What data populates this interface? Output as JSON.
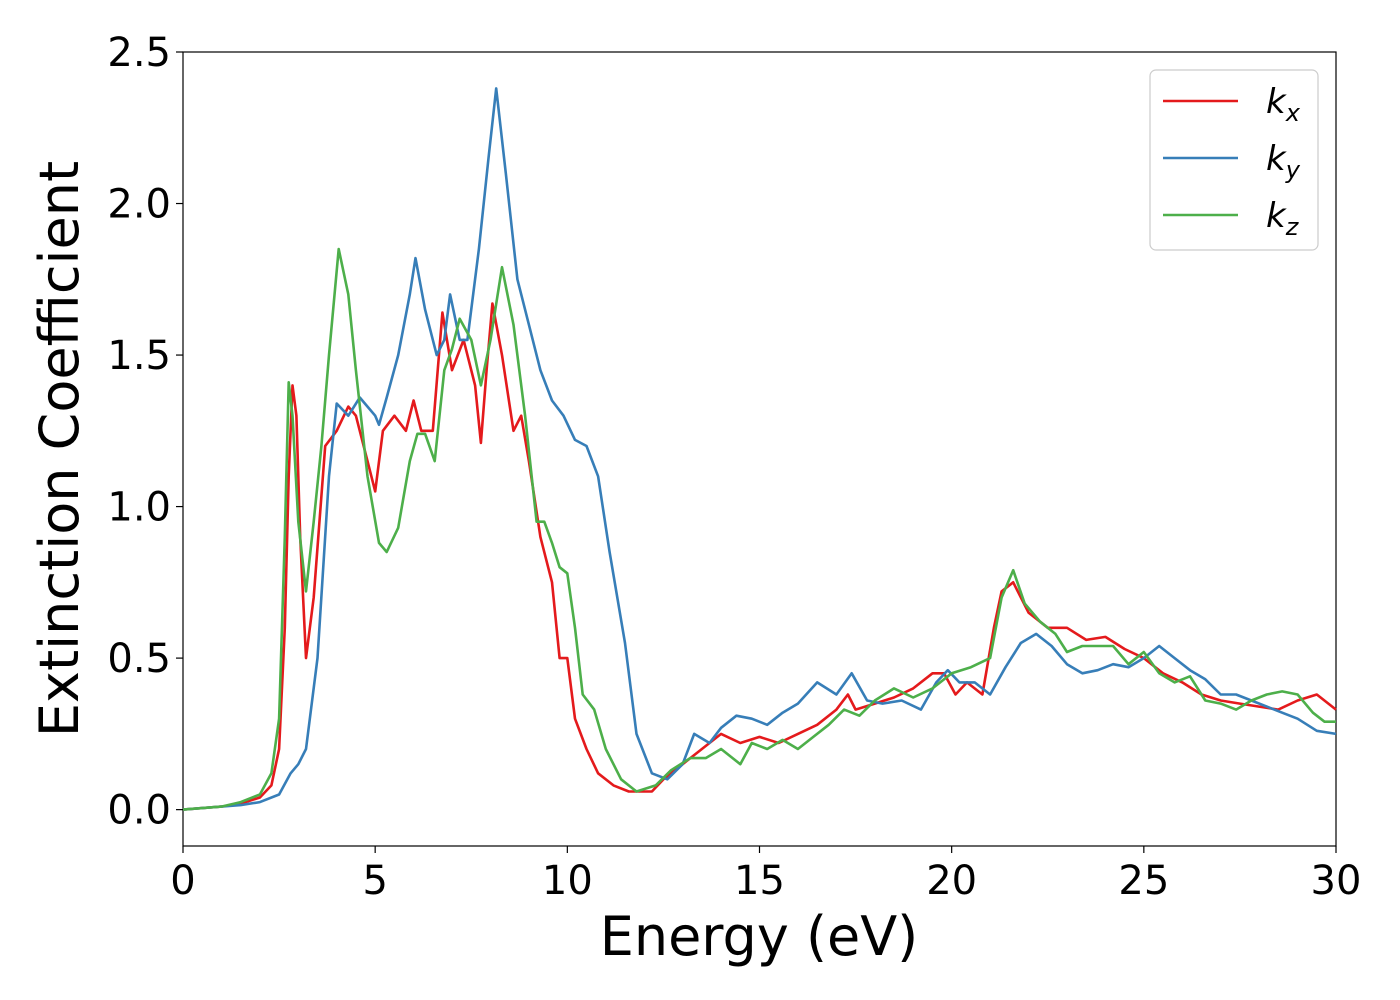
{
  "chart_data": {
    "type": "line",
    "xlabel": "Energy (eV)",
    "ylabel": "Extinction Coefficient",
    "xlim": [
      0,
      30
    ],
    "ylim": [
      -0.12,
      2.5
    ],
    "xticks": [
      "0",
      "5",
      "10",
      "15",
      "20",
      "25",
      "30"
    ],
    "yticks": [
      "0.0",
      "0.5",
      "1.0",
      "1.5",
      "2.0",
      "2.5"
    ],
    "grid": false,
    "legend_position": "top-right",
    "series": [
      {
        "name": "k_x",
        "label_main": "k",
        "label_sub": "x",
        "color": "#e41a1c",
        "points": [
          [
            0,
            0
          ],
          [
            1,
            0.01
          ],
          [
            1.5,
            0.02
          ],
          [
            2,
            0.04
          ],
          [
            2.3,
            0.08
          ],
          [
            2.5,
            0.2
          ],
          [
            2.65,
            0.6
          ],
          [
            2.75,
            1.1
          ],
          [
            2.85,
            1.4
          ],
          [
            2.95,
            1.3
          ],
          [
            3.05,
            0.9
          ],
          [
            3.2,
            0.5
          ],
          [
            3.4,
            0.7
          ],
          [
            3.7,
            1.2
          ],
          [
            4.0,
            1.25
          ],
          [
            4.3,
            1.33
          ],
          [
            4.5,
            1.3
          ],
          [
            4.8,
            1.15
          ],
          [
            5.0,
            1.05
          ],
          [
            5.2,
            1.25
          ],
          [
            5.5,
            1.3
          ],
          [
            5.8,
            1.25
          ],
          [
            6.0,
            1.35
          ],
          [
            6.2,
            1.25
          ],
          [
            6.5,
            1.25
          ],
          [
            6.75,
            1.64
          ],
          [
            7.0,
            1.45
          ],
          [
            7.3,
            1.55
          ],
          [
            7.6,
            1.4
          ],
          [
            7.75,
            1.21
          ],
          [
            7.9,
            1.45
          ],
          [
            8.05,
            1.67
          ],
          [
            8.3,
            1.5
          ],
          [
            8.6,
            1.25
          ],
          [
            8.8,
            1.3
          ],
          [
            9.0,
            1.15
          ],
          [
            9.3,
            0.9
          ],
          [
            9.6,
            0.75
          ],
          [
            9.8,
            0.5
          ],
          [
            10.0,
            0.5
          ],
          [
            10.2,
            0.3
          ],
          [
            10.5,
            0.2
          ],
          [
            10.8,
            0.12
          ],
          [
            11.2,
            0.08
          ],
          [
            11.6,
            0.06
          ],
          [
            12.2,
            0.06
          ],
          [
            12.5,
            0.1
          ],
          [
            13.0,
            0.15
          ],
          [
            13.5,
            0.2
          ],
          [
            14.0,
            0.25
          ],
          [
            14.5,
            0.22
          ],
          [
            15.0,
            0.24
          ],
          [
            15.5,
            0.22
          ],
          [
            16.0,
            0.25
          ],
          [
            16.5,
            0.28
          ],
          [
            17.0,
            0.33
          ],
          [
            17.3,
            0.38
          ],
          [
            17.5,
            0.33
          ],
          [
            18.0,
            0.35
          ],
          [
            18.5,
            0.37
          ],
          [
            19.0,
            0.4
          ],
          [
            19.5,
            0.45
          ],
          [
            19.8,
            0.45
          ],
          [
            20.1,
            0.38
          ],
          [
            20.4,
            0.42
          ],
          [
            20.8,
            0.38
          ],
          [
            21.1,
            0.6
          ],
          [
            21.3,
            0.72
          ],
          [
            21.6,
            0.75
          ],
          [
            22.0,
            0.65
          ],
          [
            22.5,
            0.6
          ],
          [
            23.0,
            0.6
          ],
          [
            23.5,
            0.56
          ],
          [
            24.0,
            0.57
          ],
          [
            24.5,
            0.53
          ],
          [
            25.0,
            0.5
          ],
          [
            25.5,
            0.45
          ],
          [
            26.0,
            0.42
          ],
          [
            26.5,
            0.38
          ],
          [
            27.0,
            0.36
          ],
          [
            27.5,
            0.35
          ],
          [
            28.0,
            0.34
          ],
          [
            28.5,
            0.33
          ],
          [
            29.0,
            0.36
          ],
          [
            29.5,
            0.38
          ],
          [
            30.0,
            0.33
          ]
        ]
      },
      {
        "name": "k_y",
        "label_main": "k",
        "label_sub": "y",
        "color": "#377eb8",
        "points": [
          [
            0,
            0
          ],
          [
            1,
            0.01
          ],
          [
            1.5,
            0.015
          ],
          [
            2,
            0.025
          ],
          [
            2.5,
            0.05
          ],
          [
            2.8,
            0.12
          ],
          [
            3.0,
            0.15
          ],
          [
            3.2,
            0.2
          ],
          [
            3.5,
            0.5
          ],
          [
            3.8,
            1.1
          ],
          [
            4.0,
            1.34
          ],
          [
            4.3,
            1.3
          ],
          [
            4.6,
            1.36
          ],
          [
            4.8,
            1.33
          ],
          [
            5.0,
            1.3
          ],
          [
            5.1,
            1.27
          ],
          [
            5.3,
            1.36
          ],
          [
            5.6,
            1.5
          ],
          [
            5.9,
            1.7
          ],
          [
            6.05,
            1.82
          ],
          [
            6.3,
            1.65
          ],
          [
            6.6,
            1.5
          ],
          [
            6.8,
            1.55
          ],
          [
            6.95,
            1.7
          ],
          [
            7.2,
            1.55
          ],
          [
            7.4,
            1.55
          ],
          [
            7.7,
            1.85
          ],
          [
            7.95,
            2.15
          ],
          [
            8.15,
            2.38
          ],
          [
            8.4,
            2.1
          ],
          [
            8.7,
            1.75
          ],
          [
            9.0,
            1.6
          ],
          [
            9.3,
            1.45
          ],
          [
            9.6,
            1.35
          ],
          [
            9.9,
            1.3
          ],
          [
            10.2,
            1.22
          ],
          [
            10.5,
            1.2
          ],
          [
            10.8,
            1.1
          ],
          [
            11.1,
            0.85
          ],
          [
            11.5,
            0.55
          ],
          [
            11.8,
            0.25
          ],
          [
            12.2,
            0.12
          ],
          [
            12.6,
            0.1
          ],
          [
            13.0,
            0.15
          ],
          [
            13.3,
            0.25
          ],
          [
            13.7,
            0.22
          ],
          [
            14.0,
            0.27
          ],
          [
            14.4,
            0.31
          ],
          [
            14.8,
            0.3
          ],
          [
            15.2,
            0.28
          ],
          [
            15.6,
            0.32
          ],
          [
            16.0,
            0.35
          ],
          [
            16.5,
            0.42
          ],
          [
            17.0,
            0.38
          ],
          [
            17.4,
            0.45
          ],
          [
            17.8,
            0.36
          ],
          [
            18.2,
            0.35
          ],
          [
            18.7,
            0.36
          ],
          [
            19.2,
            0.33
          ],
          [
            19.6,
            0.42
          ],
          [
            19.9,
            0.46
          ],
          [
            20.2,
            0.42
          ],
          [
            20.6,
            0.42
          ],
          [
            21.0,
            0.38
          ],
          [
            21.4,
            0.47
          ],
          [
            21.8,
            0.55
          ],
          [
            22.2,
            0.58
          ],
          [
            22.6,
            0.54
          ],
          [
            23.0,
            0.48
          ],
          [
            23.4,
            0.45
          ],
          [
            23.8,
            0.46
          ],
          [
            24.2,
            0.48
          ],
          [
            24.6,
            0.47
          ],
          [
            25.0,
            0.5
          ],
          [
            25.4,
            0.54
          ],
          [
            25.8,
            0.5
          ],
          [
            26.2,
            0.46
          ],
          [
            26.6,
            0.43
          ],
          [
            27.0,
            0.38
          ],
          [
            27.4,
            0.38
          ],
          [
            27.8,
            0.36
          ],
          [
            28.2,
            0.34
          ],
          [
            28.6,
            0.32
          ],
          [
            29.0,
            0.3
          ],
          [
            29.5,
            0.26
          ],
          [
            30.0,
            0.25
          ]
        ]
      },
      {
        "name": "k_z",
        "label_main": "k",
        "label_sub": "z",
        "color": "#4daf4a",
        "points": [
          [
            0,
            0
          ],
          [
            1,
            0.01
          ],
          [
            1.5,
            0.025
          ],
          [
            2,
            0.05
          ],
          [
            2.3,
            0.12
          ],
          [
            2.5,
            0.3
          ],
          [
            2.65,
            0.9
          ],
          [
            2.75,
            1.41
          ],
          [
            2.85,
            1.3
          ],
          [
            3.0,
            0.95
          ],
          [
            3.2,
            0.72
          ],
          [
            3.4,
            0.95
          ],
          [
            3.6,
            1.2
          ],
          [
            3.8,
            1.5
          ],
          [
            4.05,
            1.85
          ],
          [
            4.3,
            1.7
          ],
          [
            4.5,
            1.45
          ],
          [
            4.8,
            1.1
          ],
          [
            5.1,
            0.88
          ],
          [
            5.3,
            0.85
          ],
          [
            5.6,
            0.93
          ],
          [
            5.9,
            1.15
          ],
          [
            6.1,
            1.24
          ],
          [
            6.3,
            1.24
          ],
          [
            6.55,
            1.15
          ],
          [
            6.8,
            1.45
          ],
          [
            7.0,
            1.52
          ],
          [
            7.2,
            1.62
          ],
          [
            7.5,
            1.55
          ],
          [
            7.75,
            1.4
          ],
          [
            8.0,
            1.55
          ],
          [
            8.3,
            1.79
          ],
          [
            8.6,
            1.6
          ],
          [
            8.9,
            1.3
          ],
          [
            9.2,
            0.95
          ],
          [
            9.4,
            0.95
          ],
          [
            9.6,
            0.88
          ],
          [
            9.8,
            0.8
          ],
          [
            10.0,
            0.78
          ],
          [
            10.2,
            0.6
          ],
          [
            10.4,
            0.38
          ],
          [
            10.7,
            0.33
          ],
          [
            11.0,
            0.2
          ],
          [
            11.4,
            0.1
          ],
          [
            11.8,
            0.06
          ],
          [
            12.3,
            0.08
          ],
          [
            12.7,
            0.13
          ],
          [
            13.2,
            0.17
          ],
          [
            13.6,
            0.17
          ],
          [
            14.0,
            0.2
          ],
          [
            14.5,
            0.15
          ],
          [
            14.8,
            0.22
          ],
          [
            15.2,
            0.2
          ],
          [
            15.6,
            0.23
          ],
          [
            16.0,
            0.2
          ],
          [
            16.4,
            0.24
          ],
          [
            16.8,
            0.28
          ],
          [
            17.2,
            0.33
          ],
          [
            17.6,
            0.31
          ],
          [
            18.0,
            0.36
          ],
          [
            18.5,
            0.4
          ],
          [
            19.0,
            0.37
          ],
          [
            19.5,
            0.4
          ],
          [
            20.0,
            0.45
          ],
          [
            20.5,
            0.47
          ],
          [
            21.0,
            0.5
          ],
          [
            21.3,
            0.7
          ],
          [
            21.6,
            0.79
          ],
          [
            21.9,
            0.68
          ],
          [
            22.3,
            0.62
          ],
          [
            22.7,
            0.58
          ],
          [
            23.0,
            0.52
          ],
          [
            23.4,
            0.54
          ],
          [
            23.8,
            0.54
          ],
          [
            24.2,
            0.54
          ],
          [
            24.6,
            0.48
          ],
          [
            25.0,
            0.52
          ],
          [
            25.4,
            0.45
          ],
          [
            25.8,
            0.42
          ],
          [
            26.2,
            0.44
          ],
          [
            26.6,
            0.36
          ],
          [
            27.0,
            0.35
          ],
          [
            27.4,
            0.33
          ],
          [
            27.8,
            0.36
          ],
          [
            28.2,
            0.38
          ],
          [
            28.6,
            0.39
          ],
          [
            29.0,
            0.38
          ],
          [
            29.4,
            0.32
          ],
          [
            29.7,
            0.29
          ],
          [
            30.0,
            0.29
          ]
        ]
      }
    ]
  }
}
